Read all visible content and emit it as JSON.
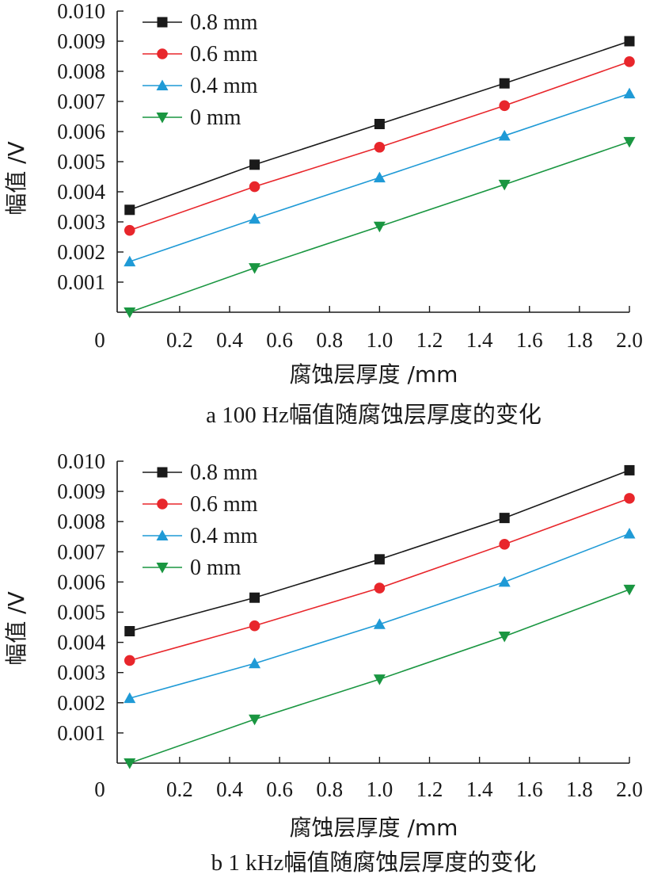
{
  "chart_data": [
    {
      "type": "line",
      "caption": "a  100 Hz幅值随腐蚀层厚度的变化",
      "xlabel": "腐蚀层厚度 /mm",
      "ylabel": "幅值 /V",
      "xlim": [
        -0.05,
        2.0
      ],
      "ylim": [
        0.0,
        0.01
      ],
      "xticks": [
        0.2,
        0.4,
        0.6,
        0.8,
        1.0,
        1.2,
        1.4,
        1.6,
        1.8,
        2.0
      ],
      "xtick_labels": [
        "0.2",
        "0.4",
        "0.6",
        "0.8",
        "1.0",
        "1.2",
        "1.4",
        "1.6",
        "1.8",
        "2.0"
      ],
      "yticks": [
        0.001,
        0.002,
        0.003,
        0.004,
        0.005,
        0.006,
        0.007,
        0.008,
        0.009,
        0.01
      ],
      "ytick_labels": [
        "0.001",
        "0.002",
        "0.003",
        "0.004",
        "0.005",
        "0.006",
        "0.007",
        "0.008",
        "0.009",
        "0.010"
      ],
      "origin_label": "0",
      "legend_position": "top-left",
      "x": [
        0,
        0.5,
        1.0,
        1.5,
        2.0
      ],
      "series": [
        {
          "name": "0.8 mm",
          "color": "#1a1a1a",
          "marker": "square",
          "values": [
            0.0034,
            0.0049,
            0.00625,
            0.0076,
            0.009
          ]
        },
        {
          "name": "0.6 mm",
          "color": "#e8262b",
          "marker": "circle",
          "values": [
            0.00272,
            0.00417,
            0.00548,
            0.00686,
            0.00832
          ]
        },
        {
          "name": "0.4 mm",
          "color": "#1f9ad6",
          "marker": "triangle-up",
          "values": [
            0.00168,
            0.0031,
            0.00447,
            0.00586,
            0.00726
          ]
        },
        {
          "name": "0 mm",
          "color": "#1a9641",
          "marker": "triangle-down",
          "values": [
            0.0,
            0.00147,
            0.00285,
            0.00424,
            0.00566
          ]
        }
      ]
    },
    {
      "type": "line",
      "caption": "b  1 kHz幅值随腐蚀层厚度的变化",
      "xlabel": "腐蚀层厚度 /mm",
      "ylabel": "幅值 /V",
      "xlim": [
        -0.05,
        2.0
      ],
      "ylim": [
        0.0,
        0.01
      ],
      "xticks": [
        0.2,
        0.4,
        0.6,
        0.8,
        1.0,
        1.2,
        1.4,
        1.6,
        1.8,
        2.0
      ],
      "xtick_labels": [
        "0.2",
        "0.4",
        "0.6",
        "0.8",
        "1.0",
        "1.2",
        "1.4",
        "1.6",
        "1.8",
        "2.0"
      ],
      "yticks": [
        0.001,
        0.002,
        0.003,
        0.004,
        0.005,
        0.006,
        0.007,
        0.008,
        0.009,
        0.01
      ],
      "ytick_labels": [
        "0.001",
        "0.002",
        "0.003",
        "0.004",
        "0.005",
        "0.006",
        "0.007",
        "0.008",
        "0.009",
        "0.010"
      ],
      "origin_label": "0",
      "legend_position": "top-left",
      "x": [
        0,
        0.5,
        1.0,
        1.5,
        2.0
      ],
      "series": [
        {
          "name": "0.8 mm",
          "color": "#1a1a1a",
          "marker": "square",
          "values": [
            0.00437,
            0.00548,
            0.00675,
            0.00812,
            0.0097
          ]
        },
        {
          "name": "0.6 mm",
          "color": "#e8262b",
          "marker": "circle",
          "values": [
            0.0034,
            0.00455,
            0.0058,
            0.00725,
            0.00877
          ]
        },
        {
          "name": "0.4 mm",
          "color": "#1f9ad6",
          "marker": "triangle-up",
          "values": [
            0.00215,
            0.0033,
            0.0046,
            0.006,
            0.0076
          ]
        },
        {
          "name": "0 mm",
          "color": "#1a9641",
          "marker": "triangle-down",
          "values": [
            0.0,
            0.00145,
            0.00278,
            0.0042,
            0.00575
          ]
        }
      ]
    }
  ]
}
